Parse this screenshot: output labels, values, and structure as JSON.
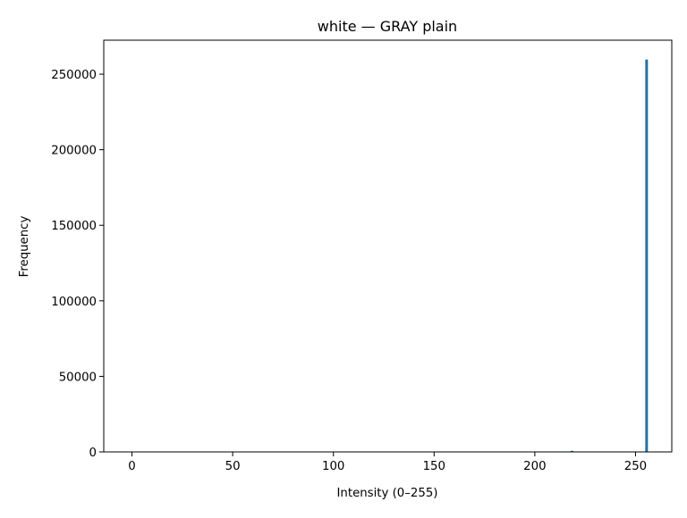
{
  "chart_data": {
    "type": "bar",
    "title": "white — GRAY plain",
    "xlabel": "Intensity (0–255)",
    "ylabel": "Frequency",
    "xlim": [
      -14,
      268
    ],
    "ylim": [
      0,
      272500
    ],
    "x_ticks": [
      "0",
      "50",
      "100",
      "150",
      "200",
      "250"
    ],
    "y_ticks": [
      "0",
      "50000",
      "100000",
      "150000",
      "200000",
      "250000"
    ],
    "grid": false,
    "bar_color": "#1f77b4",
    "x": [
      218,
      255
    ],
    "values": [
      300,
      259500
    ]
  }
}
